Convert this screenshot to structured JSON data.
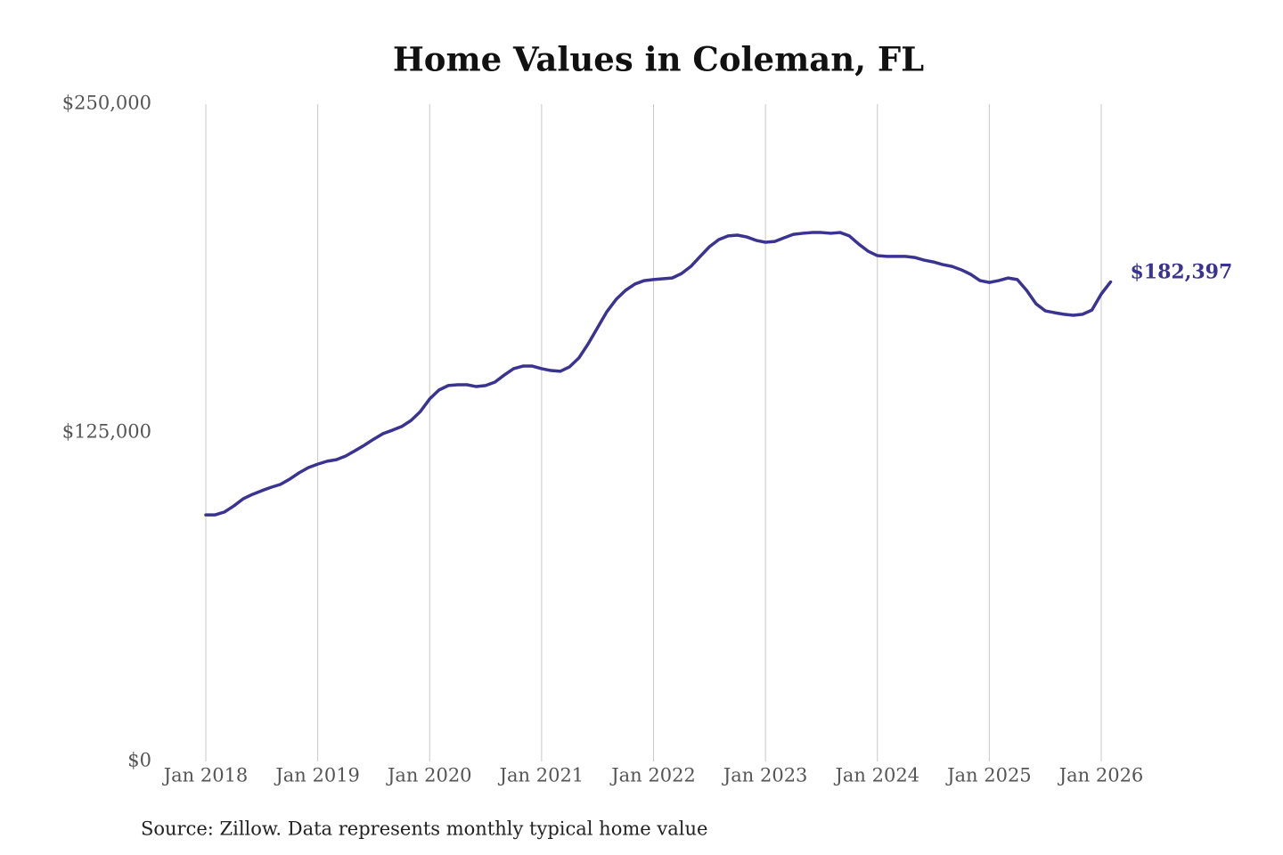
{
  "chart_data": {
    "type": "line",
    "title": "Home Values in Coleman, FL",
    "source": "Source: Zillow. Data represents monthly typical home value",
    "x": [
      "2018-01",
      "2018-02",
      "2018-03",
      "2018-04",
      "2018-05",
      "2018-06",
      "2018-07",
      "2018-08",
      "2018-09",
      "2018-10",
      "2018-11",
      "2018-12",
      "2019-01",
      "2019-02",
      "2019-03",
      "2019-04",
      "2019-05",
      "2019-06",
      "2019-07",
      "2019-08",
      "2019-09",
      "2019-10",
      "2019-11",
      "2019-12",
      "2020-01",
      "2020-02",
      "2020-03",
      "2020-04",
      "2020-05",
      "2020-06",
      "2020-07",
      "2020-08",
      "2020-09",
      "2020-10",
      "2020-11",
      "2020-12",
      "2021-01",
      "2021-02",
      "2021-03",
      "2021-04",
      "2021-05",
      "2021-06",
      "2021-07",
      "2021-08",
      "2021-09",
      "2021-10",
      "2021-11",
      "2021-12",
      "2022-01",
      "2022-02",
      "2022-03",
      "2022-04",
      "2022-05",
      "2022-06",
      "2022-07",
      "2022-08",
      "2022-09",
      "2022-10",
      "2022-11",
      "2022-12",
      "2023-01",
      "2023-02",
      "2023-03",
      "2023-04",
      "2023-05",
      "2023-06",
      "2023-07",
      "2023-08",
      "2023-09",
      "2023-10",
      "2023-11",
      "2023-12",
      "2024-01",
      "2024-02",
      "2024-03",
      "2024-04",
      "2024-05",
      "2024-06",
      "2024-07",
      "2024-08",
      "2024-09",
      "2024-10",
      "2024-11",
      "2024-12",
      "2025-01",
      "2025-02",
      "2025-03",
      "2025-04",
      "2025-05",
      "2025-06",
      "2025-07",
      "2025-08",
      "2025-09",
      "2025-10",
      "2025-11",
      "2025-12",
      "2026-01",
      "2026-02"
    ],
    "series": [
      {
        "name": "Home value",
        "color": "#3a3391",
        "values": [
          93800,
          93800,
          94900,
          97200,
          99900,
          101600,
          103000,
          104300,
          105400,
          107400,
          109800,
          111800,
          113100,
          114200,
          114800,
          116200,
          118200,
          120300,
          122600,
          124700,
          126000,
          127400,
          129700,
          133100,
          137900,
          141300,
          143000,
          143300,
          143300,
          142600,
          143000,
          144300,
          147000,
          149400,
          150400,
          150400,
          149400,
          148700,
          148400,
          150100,
          153500,
          158900,
          165000,
          171100,
          175800,
          179200,
          181600,
          182900,
          183300,
          183600,
          183900,
          185600,
          188300,
          192100,
          195800,
          198500,
          199900,
          200200,
          199500,
          198200,
          197500,
          197800,
          199200,
          200500,
          200900,
          201200,
          201200,
          200900,
          201200,
          199900,
          196800,
          194100,
          192400,
          192100,
          192100,
          192100,
          191700,
          190700,
          190000,
          189000,
          188300,
          187000,
          185300,
          182900,
          182200,
          182900,
          183900,
          183300,
          179200,
          174100,
          171400,
          170700,
          170100,
          169700,
          170100,
          171700,
          177800,
          182397
        ],
        "value_labels": [
          null,
          null,
          null,
          null,
          null,
          null,
          null,
          null,
          null,
          null,
          null,
          null,
          null,
          null,
          null,
          null,
          null,
          null,
          null,
          null,
          null,
          null,
          null,
          null,
          null,
          null,
          null,
          null,
          null,
          null,
          null,
          null,
          null,
          null,
          null,
          null,
          null,
          null,
          null,
          null,
          null,
          null,
          null,
          null,
          null,
          null,
          null,
          null,
          null,
          null,
          null,
          null,
          null,
          null,
          null,
          null,
          null,
          null,
          null,
          null,
          null,
          null,
          null,
          null,
          null,
          null,
          null,
          null,
          null,
          null,
          null,
          null,
          null,
          null,
          null,
          null,
          null,
          null,
          null,
          null,
          null,
          null,
          null,
          null,
          null,
          null,
          null,
          null,
          null,
          null,
          null,
          null,
          null,
          null,
          null,
          null,
          null,
          "$182,397"
        ]
      }
    ],
    "xlim": [
      "2018-01",
      "2026-01"
    ],
    "xticks": [
      {
        "value": "2018-01",
        "label": "Jan 2018"
      },
      {
        "value": "2019-01",
        "label": "Jan 2019"
      },
      {
        "value": "2020-01",
        "label": "Jan 2020"
      },
      {
        "value": "2021-01",
        "label": "Jan 2021"
      },
      {
        "value": "2022-01",
        "label": "Jan 2022"
      },
      {
        "value": "2023-01",
        "label": "Jan 2023"
      },
      {
        "value": "2024-01",
        "label": "Jan 2024"
      },
      {
        "value": "2025-01",
        "label": "Jan 2025"
      },
      {
        "value": "2026-01",
        "label": "Jan 2026"
      }
    ],
    "ylim": [
      0,
      250000
    ],
    "yticks": [
      {
        "value": 0,
        "label": "$0"
      },
      {
        "value": 125000,
        "label": "$125,000"
      },
      {
        "value": 250000,
        "label": "$250,000"
      }
    ],
    "grid": "x"
  }
}
